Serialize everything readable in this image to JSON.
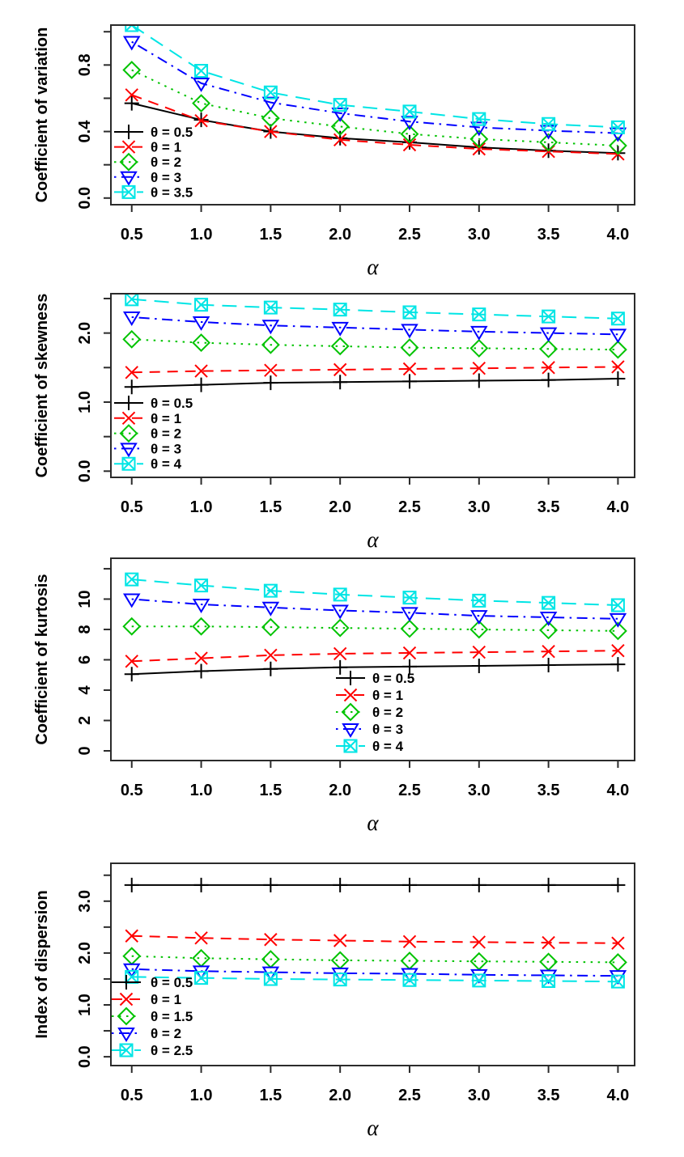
{
  "figure": {
    "background": "#ffffff",
    "axis_color": "#2b2b2b",
    "text_color": "#000000"
  },
  "chart_data": [
    {
      "type": "line",
      "name": "coefficient-of-variation",
      "title": "",
      "xlabel": "α",
      "ylabel": "Coefficient of variation",
      "x": [
        0.5,
        1.0,
        1.5,
        2.0,
        2.5,
        3.0,
        3.5,
        4.0
      ],
      "xtick_labels": [
        "0.5",
        "1.0",
        "1.5",
        "2.0",
        "2.5",
        "3.0",
        "3.5",
        "4.0"
      ],
      "xlim": [
        0.35,
        4.12
      ],
      "ylim": [
        -0.04,
        1.04
      ],
      "yticks": [
        0,
        0.2,
        0.4,
        0.6,
        0.8,
        1.0
      ],
      "ytick_labels": [
        "0.0",
        "",
        "0.4",
        "",
        "0.8",
        ""
      ],
      "grid": false,
      "legend_position": "inside-lower-left",
      "series": [
        {
          "label": "θ = 0.5",
          "color": "#000000",
          "linetype": "solid",
          "marker": "plus",
          "values": [
            0.57,
            0.47,
            0.4,
            0.36,
            0.335,
            0.305,
            0.285,
            0.27
          ]
        },
        {
          "label": "θ = 1",
          "color": "#FF0000",
          "linetype": "dashed",
          "marker": "cross",
          "values": [
            0.62,
            0.465,
            0.4,
            0.35,
            0.32,
            0.295,
            0.28,
            0.265
          ]
        },
        {
          "label": "θ = 2",
          "color": "#00C300",
          "linetype": "dotted",
          "marker": "diamond",
          "values": [
            0.77,
            0.57,
            0.48,
            0.43,
            0.385,
            0.355,
            0.335,
            0.315
          ]
        },
        {
          "label": "θ = 3",
          "color": "#0000FF",
          "linetype": "dotdash",
          "marker": "triangle-down",
          "values": [
            0.94,
            0.69,
            0.575,
            0.51,
            0.46,
            0.425,
            0.405,
            0.39
          ]
        },
        {
          "label": "θ = 3.5",
          "color": "#00E5E5",
          "linetype": "longdash",
          "marker": "square-cross",
          "values": [
            1.04,
            0.765,
            0.635,
            0.56,
            0.52,
            0.475,
            0.445,
            0.425
          ]
        }
      ]
    },
    {
      "type": "line",
      "name": "coefficient-of-skewness",
      "title": "",
      "xlabel": "α",
      "ylabel": "Coefficient of skewness",
      "x": [
        0.5,
        1.0,
        1.5,
        2.0,
        2.5,
        3.0,
        3.5,
        4.0
      ],
      "xtick_labels": [
        "0.5",
        "1.0",
        "1.5",
        "2.0",
        "2.5",
        "3.0",
        "3.5",
        "4.0"
      ],
      "xlim": [
        0.35,
        4.12
      ],
      "ylim": [
        -0.09,
        2.57
      ],
      "yticks": [
        0,
        0.5,
        1.0,
        1.5,
        2.0,
        2.5
      ],
      "ytick_labels": [
        "0.0",
        "",
        "1.0",
        "",
        "2.0",
        ""
      ],
      "grid": false,
      "legend_position": "inside-lower-left",
      "series": [
        {
          "label": "θ = 0.5",
          "color": "#000000",
          "linetype": "solid",
          "marker": "plus",
          "values": [
            1.22,
            1.25,
            1.28,
            1.29,
            1.3,
            1.31,
            1.32,
            1.34
          ]
        },
        {
          "label": "θ = 1",
          "color": "#FF0000",
          "linetype": "dashed",
          "marker": "cross",
          "values": [
            1.43,
            1.45,
            1.46,
            1.47,
            1.48,
            1.49,
            1.5,
            1.51
          ]
        },
        {
          "label": "θ = 2",
          "color": "#00C300",
          "linetype": "dotted",
          "marker": "diamond",
          "values": [
            1.91,
            1.86,
            1.83,
            1.81,
            1.79,
            1.78,
            1.77,
            1.76
          ]
        },
        {
          "label": "θ = 3",
          "color": "#0000FF",
          "linetype": "dotdash",
          "marker": "triangle-down",
          "values": [
            2.23,
            2.16,
            2.11,
            2.08,
            2.05,
            2.02,
            2.0,
            1.98
          ]
        },
        {
          "label": "θ = 4",
          "color": "#00E5E5",
          "linetype": "longdash",
          "marker": "square-cross",
          "values": [
            2.49,
            2.41,
            2.37,
            2.34,
            2.3,
            2.27,
            2.24,
            2.21
          ]
        }
      ]
    },
    {
      "type": "line",
      "name": "coefficient-of-kurtosis",
      "title": "",
      "xlabel": "α",
      "ylabel": "Coefficient of kurtosis",
      "x": [
        0.5,
        1.0,
        1.5,
        2.0,
        2.5,
        3.0,
        3.5,
        4.0
      ],
      "xtick_labels": [
        "0.5",
        "1.0",
        "1.5",
        "2.0",
        "2.5",
        "3.0",
        "3.5",
        "4.0"
      ],
      "xlim": [
        0.35,
        4.12
      ],
      "ylim": [
        -0.64,
        12.69
      ],
      "yticks": [
        0,
        2,
        4,
        6,
        8,
        10,
        12
      ],
      "ytick_labels": [
        "0",
        "2",
        "4",
        "6",
        "8",
        "10",
        ""
      ],
      "grid": false,
      "legend_position": "inside-lower-center",
      "series": [
        {
          "label": "θ = 0.5",
          "color": "#000000",
          "linetype": "solid",
          "marker": "plus",
          "values": [
            5.05,
            5.25,
            5.4,
            5.5,
            5.55,
            5.6,
            5.65,
            5.7
          ]
        },
        {
          "label": "θ = 1",
          "color": "#FF0000",
          "linetype": "dashed",
          "marker": "cross",
          "values": [
            5.9,
            6.1,
            6.3,
            6.4,
            6.45,
            6.5,
            6.55,
            6.6
          ]
        },
        {
          "label": "θ = 2",
          "color": "#00C300",
          "linetype": "dotted",
          "marker": "diamond",
          "values": [
            8.2,
            8.2,
            8.15,
            8.1,
            8.05,
            8.0,
            7.95,
            7.9
          ]
        },
        {
          "label": "θ = 3",
          "color": "#0000FF",
          "linetype": "dotdash",
          "marker": "triangle-down",
          "values": [
            10.0,
            9.65,
            9.45,
            9.25,
            9.1,
            8.9,
            8.8,
            8.7
          ]
        },
        {
          "label": "θ = 4",
          "color": "#00E5E5",
          "linetype": "longdash",
          "marker": "square-cross",
          "values": [
            11.3,
            10.9,
            10.55,
            10.3,
            10.1,
            9.9,
            9.75,
            9.6
          ]
        }
      ]
    },
    {
      "type": "line",
      "name": "index-of-dispersion",
      "title": "",
      "xlabel": "α",
      "ylabel": "Index of dispersion",
      "x": [
        0.5,
        1.0,
        1.5,
        2.0,
        2.5,
        3.0,
        3.5,
        4.0
      ],
      "xtick_labels": [
        "0.5",
        "1.0",
        "1.5",
        "2.0",
        "2.5",
        "3.0",
        "3.5",
        "4.0"
      ],
      "xlim": [
        0.35,
        4.12
      ],
      "ylim": [
        -0.17,
        3.73
      ],
      "yticks": [
        0,
        0.5,
        1.0,
        1.5,
        2.0,
        2.5,
        3.0,
        3.5
      ],
      "ytick_labels": [
        "0.0",
        "",
        "1.0",
        "",
        "2.0",
        "",
        "3.0",
        ""
      ],
      "grid": false,
      "legend_position": "inside-lower-left",
      "series": [
        {
          "label": "θ = 0.5",
          "color": "#000000",
          "linetype": "solid",
          "marker": "plus",
          "values": [
            3.31,
            3.31,
            3.31,
            3.31,
            3.31,
            3.31,
            3.31,
            3.31
          ]
        },
        {
          "label": "θ = 1",
          "color": "#FF0000",
          "linetype": "dashed",
          "marker": "cross",
          "values": [
            2.33,
            2.29,
            2.26,
            2.24,
            2.22,
            2.21,
            2.2,
            2.19
          ]
        },
        {
          "label": "θ = 1.5",
          "color": "#00C300",
          "linetype": "dotted",
          "marker": "diamond",
          "values": [
            1.94,
            1.9,
            1.88,
            1.86,
            1.85,
            1.84,
            1.83,
            1.82
          ]
        },
        {
          "label": "θ = 2",
          "color": "#0000FF",
          "linetype": "dotdash",
          "marker": "triangle-down",
          "values": [
            1.69,
            1.65,
            1.63,
            1.61,
            1.6,
            1.58,
            1.57,
            1.56
          ]
        },
        {
          "label": "θ = 2.5",
          "color": "#00E5E5",
          "linetype": "longdash",
          "marker": "square-cross",
          "values": [
            1.54,
            1.52,
            1.5,
            1.49,
            1.48,
            1.47,
            1.46,
            1.45
          ]
        }
      ]
    }
  ]
}
